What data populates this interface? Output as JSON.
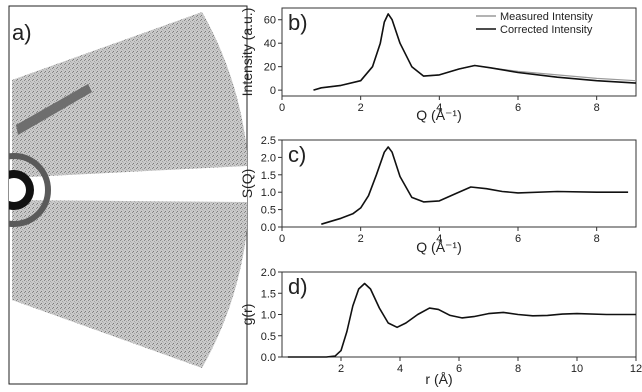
{
  "figure": {
    "panel_labels": [
      "a)",
      "b)",
      "c)",
      "d)"
    ]
  },
  "colors": {
    "measured": "#9a9a9a",
    "corrected": "#111111",
    "axis": "#333333"
  },
  "chart_data": [
    {
      "panel": "b)",
      "type": "line",
      "xlabel": "Q (Å⁻¹)",
      "ylabel": "Intensity (a.u.)",
      "xlim": [
        0,
        9
      ],
      "ylim": [
        -5,
        70
      ],
      "xticks": [
        "0",
        "2",
        "4",
        "6",
        "8"
      ],
      "yticks": [
        "0",
        "20",
        "40",
        "60"
      ],
      "legend_position": "top-right",
      "series": [
        {
          "name": "Measured Intensity",
          "x": [
            0.8,
            1.0,
            1.5,
            2.0,
            2.3,
            2.5,
            2.6,
            2.7,
            2.8,
            3.0,
            3.3,
            3.6,
            4.0,
            4.5,
            4.9,
            5.3,
            6.0,
            7.0,
            8.0,
            9.0
          ],
          "values": [
            0,
            2,
            4,
            8,
            20,
            40,
            58,
            65,
            60,
            40,
            20,
            12,
            13,
            18,
            21,
            19,
            16,
            13,
            10,
            8
          ]
        },
        {
          "name": "Corrected Intensity",
          "x": [
            0.8,
            1.0,
            1.5,
            2.0,
            2.3,
            2.5,
            2.6,
            2.7,
            2.8,
            3.0,
            3.3,
            3.6,
            4.0,
            4.5,
            4.9,
            5.3,
            6.0,
            7.0,
            8.0,
            9.0
          ],
          "values": [
            0,
            2,
            4,
            8,
            20,
            40,
            58,
            65,
            60,
            40,
            20,
            12,
            13,
            18,
            21,
            19,
            15,
            11,
            8,
            6
          ]
        }
      ]
    },
    {
      "panel": "c)",
      "type": "line",
      "xlabel": "Q (Å⁻¹)",
      "ylabel": "S(Q)",
      "xlim": [
        0,
        9
      ],
      "ylim": [
        0,
        2.5
      ],
      "xticks": [
        "0",
        "2",
        "4",
        "6",
        "8"
      ],
      "yticks": [
        "0.0",
        "0.5",
        "1.0",
        "1.5",
        "2.0",
        "2.5"
      ],
      "series": [
        {
          "x": [
            1.0,
            1.2,
            1.5,
            1.8,
            2.0,
            2.2,
            2.4,
            2.6,
            2.7,
            2.8,
            3.0,
            3.3,
            3.6,
            4.0,
            4.4,
            4.8,
            5.2,
            5.6,
            6.0,
            7.0,
            8.0,
            8.8
          ],
          "values": [
            0.08,
            0.15,
            0.25,
            0.38,
            0.55,
            0.9,
            1.5,
            2.15,
            2.3,
            2.15,
            1.45,
            0.85,
            0.72,
            0.75,
            0.95,
            1.15,
            1.1,
            1.02,
            0.98,
            1.02,
            1.0,
            1.0
          ]
        }
      ]
    },
    {
      "panel": "d)",
      "type": "line",
      "xlabel": "r (Å)",
      "ylabel": "g(r)",
      "xlim": [
        0,
        12
      ],
      "ylim": [
        0,
        2.0
      ],
      "xticks": [
        "2",
        "4",
        "6",
        "8",
        "10",
        "12"
      ],
      "yticks": [
        "0.0",
        "0.5",
        "1.0",
        "1.5",
        "2.0"
      ],
      "series": [
        {
          "x": [
            0.2,
            1.5,
            1.8,
            2.0,
            2.2,
            2.4,
            2.6,
            2.8,
            3.0,
            3.3,
            3.6,
            3.9,
            4.2,
            4.6,
            5.0,
            5.3,
            5.7,
            6.1,
            6.5,
            7.0,
            7.5,
            8.0,
            8.5,
            9.0,
            9.5,
            10.0,
            11.0,
            12.0
          ],
          "values": [
            0,
            0,
            0.02,
            0.15,
            0.6,
            1.2,
            1.6,
            1.73,
            1.6,
            1.15,
            0.8,
            0.7,
            0.8,
            1.0,
            1.15,
            1.12,
            0.98,
            0.92,
            0.95,
            1.02,
            1.05,
            1.0,
            0.97,
            0.98,
            1.01,
            1.02,
            1.0,
            1.0
          ]
        }
      ]
    }
  ]
}
